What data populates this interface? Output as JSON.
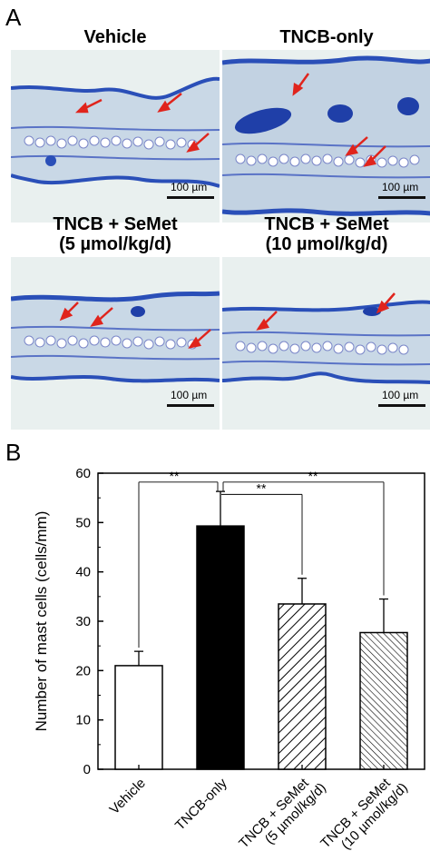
{
  "panel_a": {
    "letter": "A",
    "images": [
      {
        "title_line1": "Vehicle",
        "title_line2": "",
        "scale_label": "100 µm"
      },
      {
        "title_line1": "TNCB-only",
        "title_line2": "",
        "scale_label": "100 µm"
      },
      {
        "title_line1": "TNCB + SeMet",
        "title_line2": "(5 µmol/kg/d)",
        "scale_label": "100 µm"
      },
      {
        "title_line1": "TNCB + SeMet",
        "title_line2": "(10 µmol/kg/d)",
        "scale_label": "100 µm"
      }
    ],
    "colors": {
      "tissue_blue": "#2a4fb8",
      "tissue_light": "#c9d8e6",
      "arrow_red": "#e0241c",
      "background": "#e9f0ef"
    }
  },
  "panel_b": {
    "letter": "B",
    "significance_marker": "**"
  },
  "chart_data": {
    "type": "bar",
    "categories": [
      "Vehicle",
      "TNCB-only",
      "TNCB + SeMet\n(5 µmol/kg/d)",
      "TNCB + SeMet\n(10 µmol/kg/d)"
    ],
    "values": [
      21,
      49.3,
      33.5,
      27.7
    ],
    "errors": [
      2.9,
      7.0,
      5.2,
      6.8
    ],
    "fills": [
      "white",
      "black",
      "hatch",
      "hatch-fine"
    ],
    "ylabel": "Number of mast cells (cells/mm)",
    "xlabel": "",
    "ylim": [
      0,
      60
    ],
    "yticks": [
      0,
      10,
      20,
      30,
      40,
      50,
      60
    ],
    "significance": [
      {
        "from": 0,
        "to": 1,
        "label": "**"
      },
      {
        "from": 1,
        "to": 2,
        "label": "**"
      },
      {
        "from": 1,
        "to": 3,
        "label": "**"
      }
    ]
  }
}
